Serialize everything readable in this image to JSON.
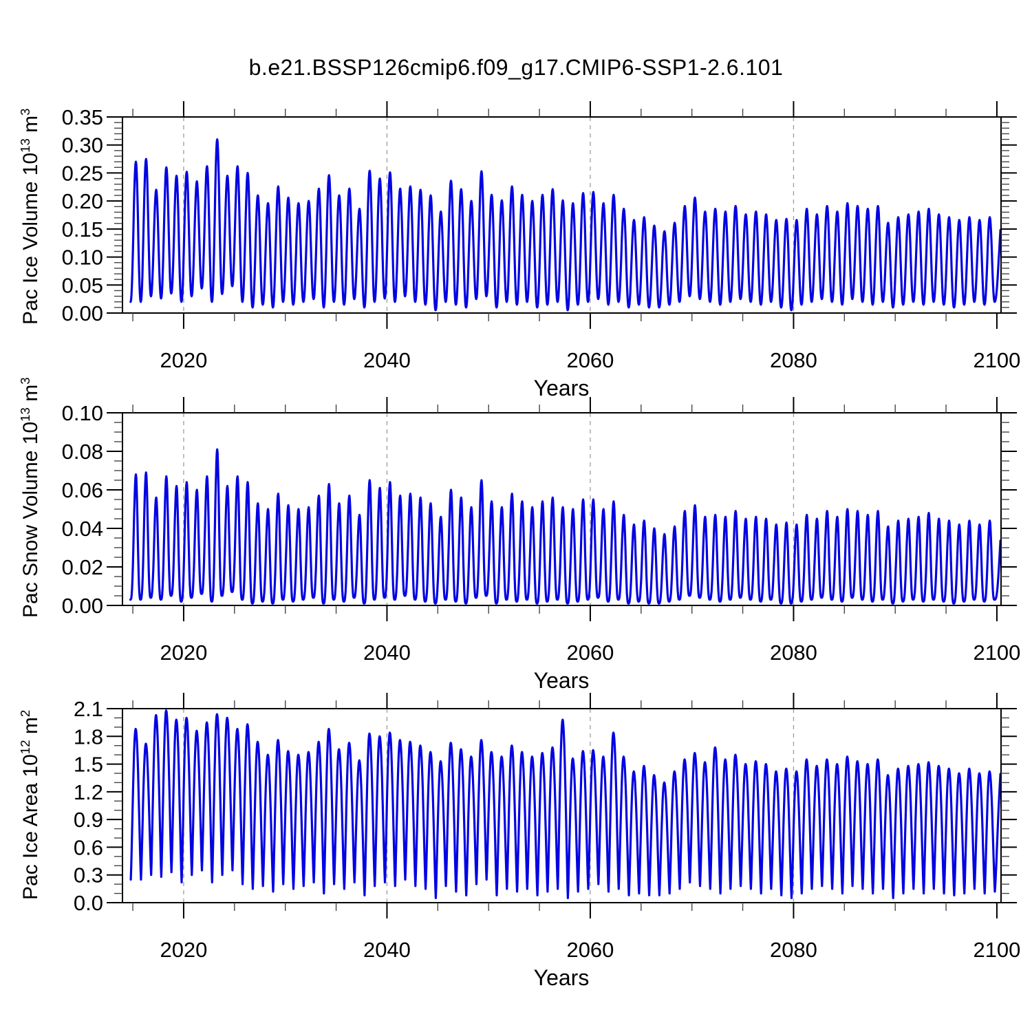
{
  "title": "b.e21.BSSP126cmip6.f09_g17.CMIP6-SSP1-2.6.101",
  "line_color": "#0404e2",
  "grid_color": "#9a9a9a",
  "axis_color": "#000000",
  "chart_data": [
    {
      "type": "line",
      "title": "b.e21.BSSP126cmip6.f09_g17.CMIP6-SSP1-2.6.101",
      "ylabel": "Pac Ice Volume 10^13 m^3",
      "ylabel_parts": {
        "base": "Pac Ice Volume 10",
        "exp": "13",
        "unit": " m",
        "unit_exp": "3"
      },
      "xlabel": "Years",
      "xlim": [
        2013.98,
        2100.41
      ],
      "ylim": [
        0,
        0.35
      ],
      "xticks": [
        2020,
        2040,
        2060,
        2080,
        2100
      ],
      "xtick_labels": [
        "2020",
        "2040",
        "2060",
        "2080",
        "2100"
      ],
      "x_minor_step": 5,
      "ytick_labels": [
        "0.00",
        "0.05",
        "0.10",
        "0.15",
        "0.20",
        "0.25",
        "0.30",
        "0.35"
      ],
      "y_major_step": 0.05,
      "y_minor_step": 0.01,
      "gridlines_x": [
        2020,
        2040,
        2060,
        2080
      ],
      "grid_style": "dashed",
      "legend": "none",
      "waveform": {
        "kind": "seasonal_cycle_monthly",
        "peak_time": 0.3,
        "trough_time": 0.78,
        "sharpness": 1.1
      },
      "series": [
        {
          "name": "Pac Ice Volume",
          "start_year": 2015,
          "annual_max": [
            0.27,
            0.275,
            0.22,
            0.26,
            0.245,
            0.252,
            0.235,
            0.262,
            0.31,
            0.245,
            0.262,
            0.25,
            0.21,
            0.196,
            0.226,
            0.206,
            0.196,
            0.2,
            0.222,
            0.246,
            0.21,
            0.222,
            0.186,
            0.254,
            0.24,
            0.251,
            0.222,
            0.226,
            0.22,
            0.21,
            0.181,
            0.236,
            0.221,
            0.2,
            0.253,
            0.211,
            0.201,
            0.226,
            0.211,
            0.2,
            0.211,
            0.221,
            0.201,
            0.196,
            0.214,
            0.216,
            0.196,
            0.211,
            0.186,
            0.166,
            0.171,
            0.156,
            0.146,
            0.161,
            0.191,
            0.206,
            0.181,
            0.186,
            0.181,
            0.191,
            0.176,
            0.181,
            0.176,
            0.166,
            0.168,
            0.166,
            0.186,
            0.176,
            0.191,
            0.181,
            0.196,
            0.191,
            0.186,
            0.191,
            0.161,
            0.171,
            0.176,
            0.181,
            0.186,
            0.176,
            0.171,
            0.166,
            0.171,
            0.166,
            0.171
          ],
          "annual_min": [
            0.02,
            0.03,
            0.026,
            0.035,
            0.02,
            0.03,
            0.044,
            0.02,
            0.034,
            0.048,
            0.02,
            0.01,
            0.015,
            0.01,
            0.02,
            0.015,
            0.02,
            0.025,
            0.01,
            0.02,
            0.015,
            0.025,
            0.01,
            0.02,
            0.026,
            0.02,
            0.03,
            0.02,
            0.015,
            0.005,
            0.02,
            0.015,
            0.01,
            0.025,
            0.03,
            0.01,
            0.02,
            0.015,
            0.02,
            0.01,
            0.015,
            0.02,
            0.005,
            0.015,
            0.02,
            0.025,
            0.015,
            0.02,
            0.01,
            0.015,
            0.01,
            0.01,
            0.015,
            0.02,
            0.03,
            0.025,
            0.02,
            0.015,
            0.02,
            0.025,
            0.02,
            0.015,
            0.02,
            0.01,
            0.005,
            0.015,
            0.02,
            0.025,
            0.02,
            0.015,
            0.025,
            0.02,
            0.015,
            0.02,
            0.01,
            0.015,
            0.02,
            0.015,
            0.02,
            0.015,
            0.01,
            0.015,
            0.02,
            0.015,
            0.02
          ],
          "end_value": 0.15
        }
      ]
    },
    {
      "type": "line",
      "title": "",
      "ylabel": "Pac Snow Volume 10^13 m^3",
      "ylabel_parts": {
        "base": "Pac Snow Volume 10",
        "exp": "13",
        "unit": " m",
        "unit_exp": "3"
      },
      "xlabel": "Years",
      "xlim": [
        2013.98,
        2100.41
      ],
      "ylim": [
        0,
        0.1
      ],
      "xticks": [
        2020,
        2040,
        2060,
        2080,
        2100
      ],
      "xtick_labels": [
        "2020",
        "2040",
        "2060",
        "2080",
        "2100"
      ],
      "x_minor_step": 5,
      "ytick_labels": [
        "0.00",
        "0.02",
        "0.04",
        "0.06",
        "0.08",
        "0.10"
      ],
      "y_major_step": 0.02,
      "y_minor_step": 0.005,
      "gridlines_x": [
        2020,
        2040,
        2060,
        2080
      ],
      "grid_style": "dashed",
      "legend": "none",
      "waveform": {
        "kind": "seasonal_cycle_monthly",
        "peak_time": 0.3,
        "trough_time": 0.76,
        "sharpness": 1.55
      },
      "series": [
        {
          "name": "Pac Snow Volume",
          "start_year": 2015,
          "annual_max": [
            0.068,
            0.069,
            0.056,
            0.067,
            0.062,
            0.064,
            0.06,
            0.067,
            0.081,
            0.062,
            0.067,
            0.064,
            0.053,
            0.05,
            0.058,
            0.052,
            0.05,
            0.051,
            0.057,
            0.063,
            0.053,
            0.057,
            0.047,
            0.065,
            0.061,
            0.064,
            0.057,
            0.058,
            0.056,
            0.053,
            0.046,
            0.06,
            0.056,
            0.051,
            0.065,
            0.054,
            0.051,
            0.058,
            0.054,
            0.051,
            0.054,
            0.056,
            0.051,
            0.05,
            0.055,
            0.055,
            0.05,
            0.054,
            0.047,
            0.042,
            0.044,
            0.04,
            0.037,
            0.041,
            0.049,
            0.052,
            0.046,
            0.047,
            0.046,
            0.049,
            0.045,
            0.046,
            0.045,
            0.042,
            0.043,
            0.042,
            0.047,
            0.045,
            0.049,
            0.046,
            0.05,
            0.049,
            0.047,
            0.049,
            0.041,
            0.044,
            0.045,
            0.046,
            0.048,
            0.045,
            0.044,
            0.042,
            0.044,
            0.042,
            0.044
          ],
          "annual_min": [
            0.003,
            0.004,
            0.003,
            0.005,
            0.002,
            0.004,
            0.006,
            0.002,
            0.005,
            0.007,
            0.003,
            0.001,
            0.002,
            0.001,
            0.003,
            0.002,
            0.003,
            0.004,
            0.001,
            0.003,
            0.002,
            0.004,
            0.001,
            0.003,
            0.004,
            0.003,
            0.005,
            0.003,
            0.002,
            0.001,
            0.003,
            0.002,
            0.001,
            0.004,
            0.005,
            0.001,
            0.003,
            0.002,
            0.003,
            0.001,
            0.002,
            0.003,
            0.001,
            0.002,
            0.003,
            0.004,
            0.002,
            0.003,
            0.001,
            0.002,
            0.001,
            0.001,
            0.002,
            0.003,
            0.005,
            0.004,
            0.003,
            0.002,
            0.003,
            0.004,
            0.003,
            0.002,
            0.003,
            0.001,
            0.001,
            0.002,
            0.003,
            0.004,
            0.003,
            0.002,
            0.004,
            0.003,
            0.002,
            0.003,
            0.001,
            0.002,
            0.003,
            0.002,
            0.003,
            0.002,
            0.001,
            0.002,
            0.003,
            0.002,
            0.003
          ],
          "end_value": 0.037
        }
      ]
    },
    {
      "type": "line",
      "title": "",
      "ylabel": "Pac Ice Area 10^12 m^2",
      "ylabel_parts": {
        "base": "Pac Ice Area 10",
        "exp": "12",
        "unit": " m",
        "unit_exp": "2"
      },
      "xlabel": "Years",
      "xlim": [
        2013.98,
        2100.41
      ],
      "ylim": [
        0,
        2.1
      ],
      "xticks": [
        2020,
        2040,
        2060,
        2080,
        2100
      ],
      "xtick_labels": [
        "2020",
        "2040",
        "2060",
        "2080",
        "2100"
      ],
      "x_minor_step": 5,
      "ytick_labels": [
        "0.0",
        "0.3",
        "0.6",
        "0.9",
        "1.2",
        "1.5",
        "1.8",
        "2.1"
      ],
      "y_major_step": 0.3,
      "y_minor_step": 0.1,
      "gridlines_x": [
        2020,
        2040,
        2060,
        2080
      ],
      "grid_style": "dashed",
      "legend": "none",
      "waveform": {
        "kind": "seasonal_cycle_monthly",
        "peak_time": 0.28,
        "trough_time": 0.8,
        "sharpness": 0.62
      },
      "series": [
        {
          "name": "Pac Ice Area",
          "start_year": 2015,
          "annual_max": [
            1.88,
            1.72,
            2.03,
            2.08,
            1.98,
            2.0,
            1.86,
            1.95,
            2.04,
            2.0,
            1.88,
            1.93,
            1.74,
            1.6,
            1.76,
            1.64,
            1.6,
            1.63,
            1.74,
            1.88,
            1.66,
            1.73,
            1.54,
            1.83,
            1.8,
            1.84,
            1.76,
            1.74,
            1.7,
            1.63,
            1.53,
            1.73,
            1.66,
            1.58,
            1.76,
            1.63,
            1.58,
            1.7,
            1.63,
            1.58,
            1.62,
            1.68,
            1.98,
            1.56,
            1.64,
            1.65,
            1.58,
            1.84,
            1.58,
            1.42,
            1.48,
            1.38,
            1.3,
            1.42,
            1.55,
            1.62,
            1.52,
            1.68,
            1.55,
            1.6,
            1.5,
            1.53,
            1.5,
            1.42,
            1.45,
            1.42,
            1.55,
            1.48,
            1.55,
            1.5,
            1.58,
            1.53,
            1.5,
            1.55,
            1.38,
            1.45,
            1.48,
            1.5,
            1.52,
            1.48,
            1.45,
            1.4,
            1.45,
            1.4,
            1.42
          ],
          "annual_min": [
            0.25,
            0.3,
            0.28,
            0.33,
            0.22,
            0.3,
            0.35,
            0.22,
            0.3,
            0.35,
            0.2,
            0.15,
            0.18,
            0.12,
            0.2,
            0.15,
            0.18,
            0.22,
            0.1,
            0.2,
            0.15,
            0.22,
            0.08,
            0.18,
            0.22,
            0.18,
            0.25,
            0.18,
            0.15,
            0.05,
            0.18,
            0.12,
            0.08,
            0.2,
            0.25,
            0.08,
            0.15,
            0.12,
            0.15,
            0.08,
            0.12,
            0.15,
            0.05,
            0.12,
            0.15,
            0.2,
            0.12,
            0.15,
            0.08,
            0.1,
            0.08,
            0.08,
            0.1,
            0.15,
            0.22,
            0.18,
            0.15,
            0.1,
            0.15,
            0.18,
            0.15,
            0.1,
            0.15,
            0.08,
            0.05,
            0.1,
            0.15,
            0.18,
            0.15,
            0.1,
            0.18,
            0.15,
            0.1,
            0.15,
            0.05,
            0.1,
            0.15,
            0.1,
            0.15,
            0.1,
            0.08,
            0.1,
            0.15,
            0.1,
            0.12
          ],
          "end_value": 1.28
        }
      ]
    }
  ]
}
